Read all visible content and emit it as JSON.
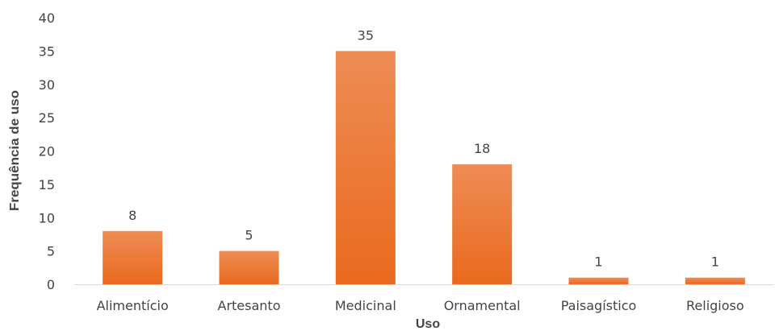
{
  "chart_data": {
    "type": "bar",
    "title": "",
    "xlabel": "Uso",
    "ylabel": "Frequência de uso",
    "categories": [
      "Alimentício",
      "Artesanto",
      "Medicinal",
      "Ornamental",
      "Paisagístico",
      "Religioso"
    ],
    "values": [
      8,
      5,
      35,
      18,
      1,
      1
    ],
    "data_labels": [
      "8",
      "5",
      "35",
      "18",
      "1",
      "1"
    ],
    "ylim": [
      0,
      40
    ],
    "yticks": [
      0,
      5,
      10,
      15,
      20,
      25,
      30,
      35,
      40
    ],
    "ytick_labels": [
      "0",
      "5",
      "10",
      "15",
      "20",
      "25",
      "30",
      "35",
      "40"
    ],
    "grid": false,
    "legend": "none",
    "bar_color_top": "#EE8C55",
    "bar_color_bottom": "#E96A1E"
  }
}
